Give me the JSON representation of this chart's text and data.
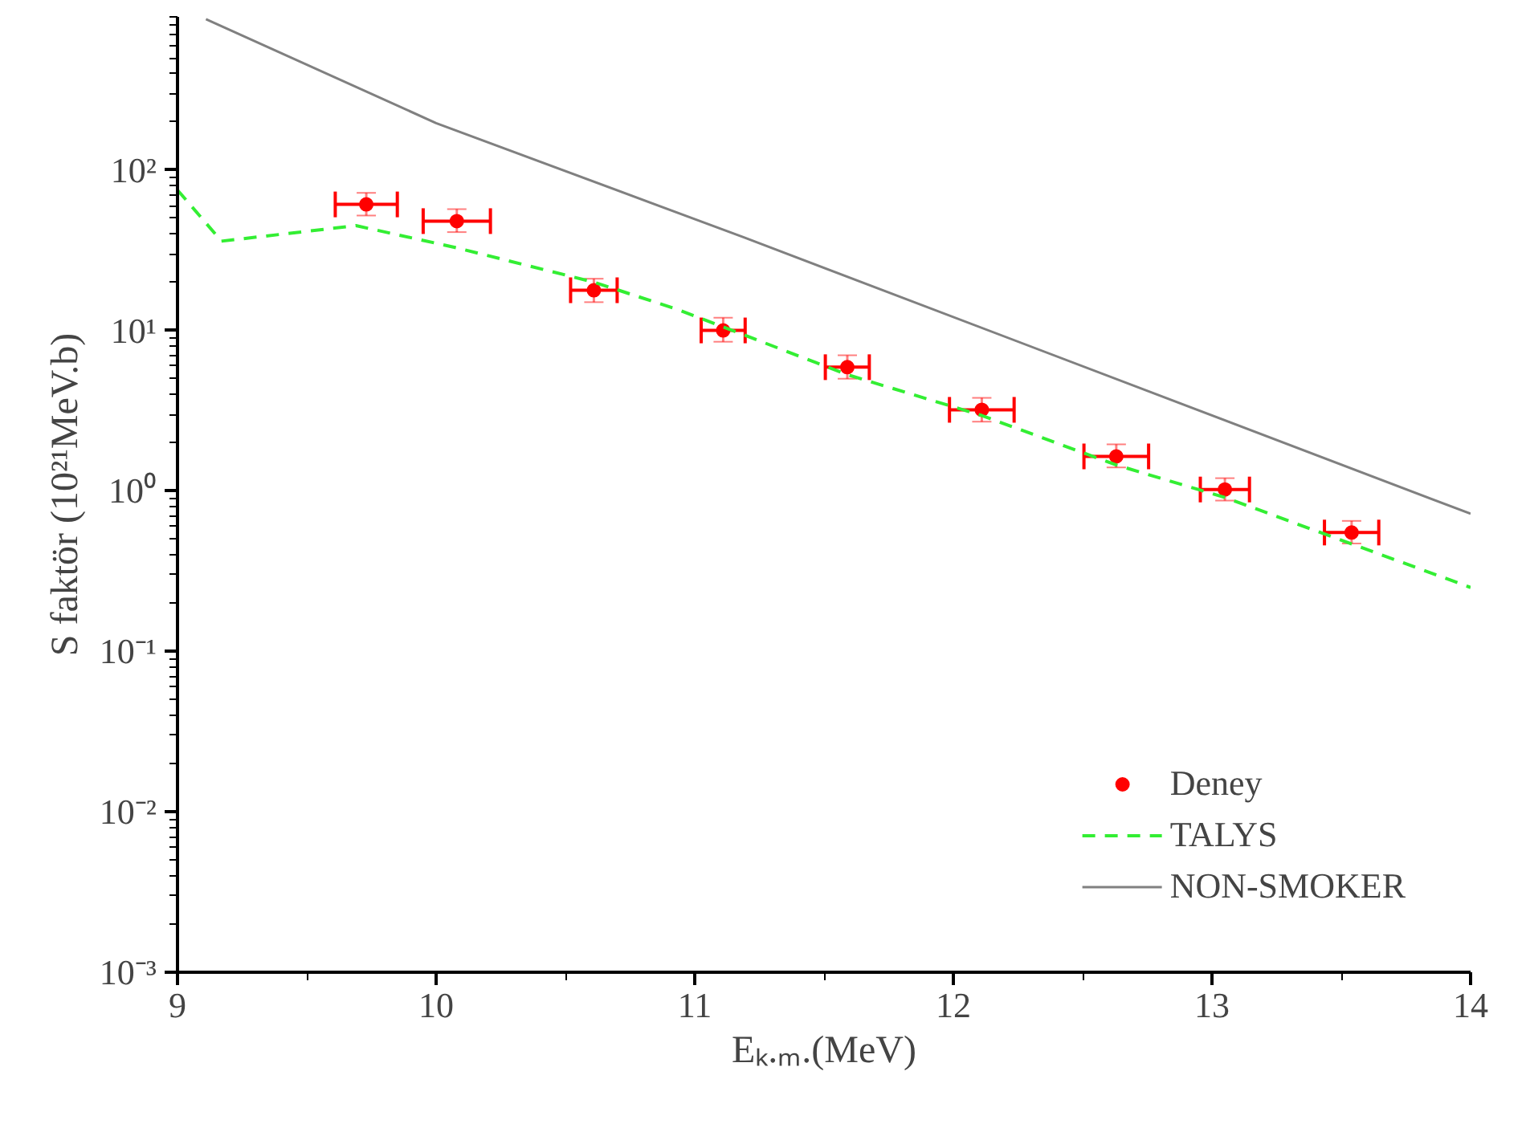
{
  "chart_data": {
    "type": "line",
    "xlabel": "Eₖ.ₘ.(MeV)",
    "ylabel": "S faktör (10²¹MeV.b)",
    "log": "y",
    "xlim": [
      9,
      14
    ],
    "ylim": [
      0.001,
      900
    ],
    "xticks": [
      9,
      10,
      11,
      12,
      13,
      14
    ],
    "yticks": [
      {
        "value": 0.001,
        "label": "10⁻³"
      },
      {
        "value": 0.01,
        "label": "10⁻²"
      },
      {
        "value": 0.1,
        "label": "10⁻¹"
      },
      {
        "value": 1,
        "label": "10⁰"
      },
      {
        "value": 10,
        "label": "10¹"
      },
      {
        "value": 100,
        "label": "10²"
      }
    ],
    "grid": false,
    "legend": "bottom right",
    "series": [
      {
        "name": "Deney",
        "type": "scatter",
        "color": "#ff0000",
        "marker": "circle",
        "x": [
          9.73,
          10.08,
          10.61,
          11.11,
          11.59,
          12.11,
          12.63,
          13.05,
          13.54
        ],
        "values": [
          61,
          48,
          17.8,
          10,
          5.9,
          3.2,
          1.64,
          1.02,
          0.55
        ],
        "errors": [
          [
            52,
            72
          ],
          [
            41,
            57
          ],
          [
            15,
            21
          ],
          [
            8.5,
            12
          ],
          [
            5,
            7
          ],
          [
            2.7,
            3.8
          ],
          [
            1.4,
            1.95
          ],
          [
            0.87,
            1.2
          ],
          [
            0.47,
            0.65
          ]
        ],
        "xerrors": [
          0.12,
          0.13,
          0.09,
          0.085,
          0.085,
          0.125,
          0.125,
          0.095,
          0.105
        ]
      },
      {
        "name": "TALYS",
        "color": "#33ee33",
        "line_style": "dashed",
        "x": [
          9.0,
          9.17,
          9.69,
          10.07,
          10.61,
          10.94,
          11.59,
          12.11,
          12.63,
          13.05,
          14.0
        ],
        "values": [
          75,
          36,
          45,
          33,
          20,
          13.4,
          5.3,
          2.95,
          1.45,
          0.91,
          0.25
        ]
      },
      {
        "name": "NON-SMOKER",
        "color": "#808080",
        "line_style": "solid",
        "x": [
          9.11,
          10.0,
          11.19,
          14.0
        ],
        "values": [
          870,
          196,
          38,
          0.72
        ]
      }
    ]
  }
}
